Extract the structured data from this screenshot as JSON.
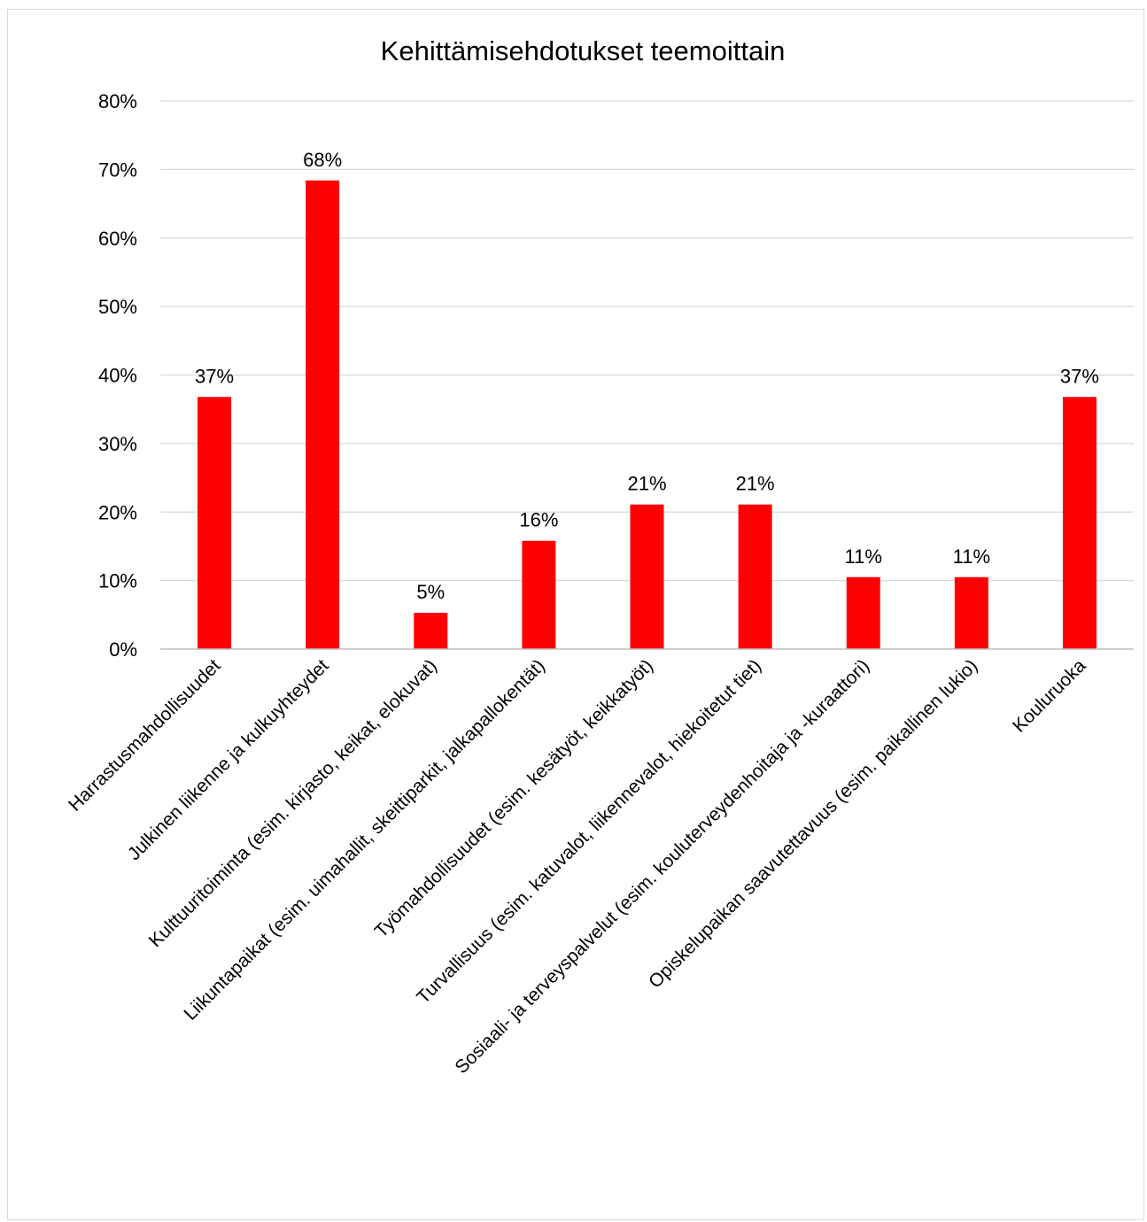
{
  "chart_data": {
    "type": "bar",
    "title": "Kehittämisehdotukset teemoittain",
    "xlabel": "",
    "ylabel": "",
    "ylim": [
      0,
      80
    ],
    "yticks": [
      "0%",
      "10%",
      "20%",
      "30%",
      "40%",
      "50%",
      "60%",
      "70%",
      "80%"
    ],
    "grid": true,
    "legend": "none",
    "bar_color": "#ff0000",
    "categories": [
      "Harrastusmahdollisuudet",
      "Julkinen liikenne ja kulkuyhteydet",
      "Kulttuuritoiminta (esim. kirjasto, keikat, elokuvat)",
      "Liikuntapaikat (esim. uimahallit, skeittiparkit, jalkapallokentät)",
      "Työmahdollisuudet (esim. kesätyöt, keikkatyöt)",
      "Turvallisuus (esim. katuvalot, liikennevalot, hiekoitetut tiet)",
      "Sosiaali- ja terveyspalvelut (esim. kouluterveydenhoitaja ja -kuraattori)",
      "Opiskelupaikan saavutettavuus (esim. paikallinen lukio)",
      "Kouluruoka"
    ],
    "values": [
      36.8,
      68.4,
      5.3,
      15.8,
      21.1,
      21.1,
      10.5,
      10.5,
      36.8
    ],
    "data_labels": [
      "37%",
      "68%",
      "5%",
      "16%",
      "21%",
      "21%",
      "11%",
      "11%",
      "37%"
    ]
  }
}
